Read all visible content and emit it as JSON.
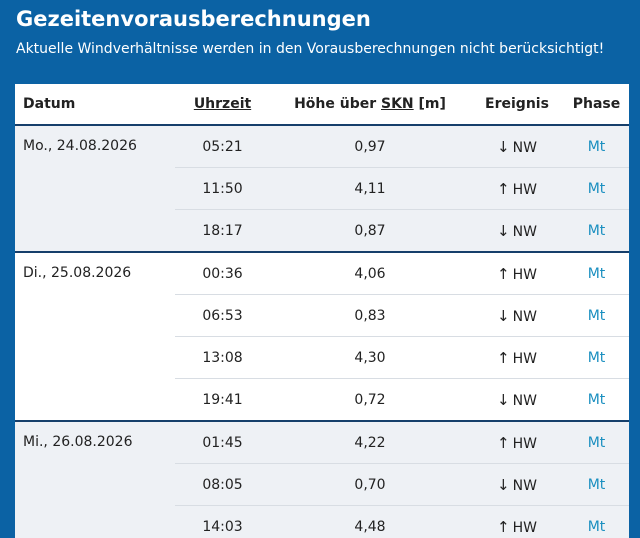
{
  "header": {
    "title": "Gezeitenvorausberechnungen",
    "subtitle": "Aktuelle Windverhältnisse werden in den Vorausberechnungen nicht berücksichtigt!"
  },
  "table": {
    "columns": {
      "date": "Datum",
      "time": "Uhrzeit",
      "height_prefix": "Höhe über",
      "height_skn": "SKN",
      "height_unit": "[m]",
      "event": "Ereignis",
      "phase": "Phase"
    },
    "groups": [
      {
        "date": "Mo., 24.08.2026",
        "rows": [
          {
            "time": "05:21",
            "height": "0,97",
            "arrow": "↓",
            "event": "NW",
            "phase": "Mt"
          },
          {
            "time": "11:50",
            "height": "4,11",
            "arrow": "↑",
            "event": "HW",
            "phase": "Mt"
          },
          {
            "time": "18:17",
            "height": "0,87",
            "arrow": "↓",
            "event": "NW",
            "phase": "Mt"
          }
        ]
      },
      {
        "date": "Di., 25.08.2026",
        "rows": [
          {
            "time": "00:36",
            "height": "4,06",
            "arrow": "↑",
            "event": "HW",
            "phase": "Mt"
          },
          {
            "time": "06:53",
            "height": "0,83",
            "arrow": "↓",
            "event": "NW",
            "phase": "Mt"
          },
          {
            "time": "13:08",
            "height": "4,30",
            "arrow": "↑",
            "event": "HW",
            "phase": "Mt"
          },
          {
            "time": "19:41",
            "height": "0,72",
            "arrow": "↓",
            "event": "NW",
            "phase": "Mt"
          }
        ]
      },
      {
        "date": "Mi., 26.08.2026",
        "rows": [
          {
            "time": "01:45",
            "height": "4,22",
            "arrow": "↑",
            "event": "HW",
            "phase": "Mt"
          },
          {
            "time": "08:05",
            "height": "0,70",
            "arrow": "↓",
            "event": "NW",
            "phase": "Mt"
          },
          {
            "time": "14:03",
            "height": "4,48",
            "arrow": "↑",
            "event": "HW",
            "phase": "Mt"
          }
        ]
      }
    ]
  }
}
